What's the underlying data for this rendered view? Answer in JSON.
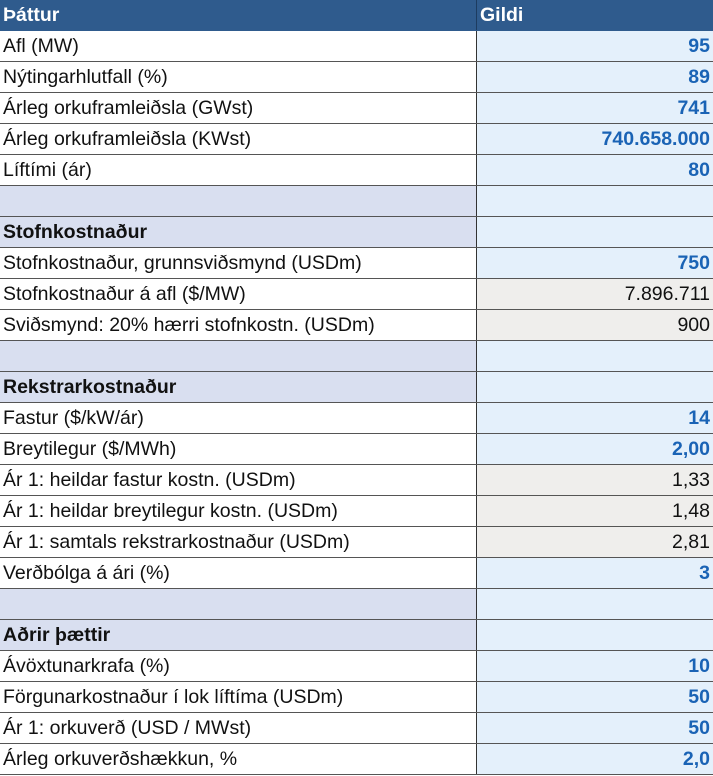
{
  "header": {
    "col1": "Þáttur",
    "col2": "Gildi"
  },
  "rows": [
    {
      "type": "input",
      "label": "Afl (MW)",
      "value": "95"
    },
    {
      "type": "input",
      "label": "Nýtingarhlutfall (%)",
      "value": "89"
    },
    {
      "type": "input",
      "label": "Árleg orkuframleiðsla (GWst)",
      "value": "741"
    },
    {
      "type": "input",
      "label": "Árleg orkuframleiðsla (KWst)",
      "value": "740.658.000"
    },
    {
      "type": "input",
      "label": "Líftími (ár)",
      "value": "80"
    },
    {
      "type": "blank",
      "label": "",
      "value": ""
    },
    {
      "type": "section",
      "label": "Stofnkostnaður",
      "value": ""
    },
    {
      "type": "input",
      "label": "Stofnkostnaður, grunnsviðsmynd (USDm)",
      "value": "750"
    },
    {
      "type": "calc",
      "label": "Stofnkostnaður á afl ($/MW)",
      "value": "7.896.711"
    },
    {
      "type": "calc",
      "label": "Sviðsmynd: 20% hærri stofnkostn. (USDm)",
      "value": "900"
    },
    {
      "type": "blank",
      "label": "",
      "value": ""
    },
    {
      "type": "section",
      "label": "Rekstrarkostnaður",
      "value": ""
    },
    {
      "type": "input",
      "label": "Fastur ($/kW/ár)",
      "value": "14"
    },
    {
      "type": "input",
      "label": "Breytilegur ($/MWh)",
      "value": "2,00"
    },
    {
      "type": "calc",
      "label": "Ár 1: heildar fastur kostn. (USDm)",
      "value": "1,33"
    },
    {
      "type": "calc",
      "label": "Ár 1: heildar breytilegur kostn. (USDm)",
      "value": "1,48"
    },
    {
      "type": "calc",
      "label": "Ár 1: samtals rekstrarkostnaður (USDm)",
      "value": "2,81"
    },
    {
      "type": "input",
      "label": "Verðbólga á ári (%)",
      "value": "3"
    },
    {
      "type": "blank",
      "label": "",
      "value": ""
    },
    {
      "type": "section",
      "label": "Aðrir þættir",
      "value": ""
    },
    {
      "type": "input",
      "label": "Ávöxtunarkrafa (%)",
      "value": "10"
    },
    {
      "type": "input",
      "label": "Förgunarkostnaður í lok líftíma (USDm)",
      "value": "50"
    },
    {
      "type": "input",
      "label": "Ár 1: orkuverð (USD / MWst)",
      "value": "50"
    },
    {
      "type": "input",
      "label": "Árleg orkuverðshækkun, %",
      "value": "2,0"
    }
  ],
  "colors": {
    "header": "#2f5b8d",
    "input_text": "#1a63b5",
    "input_bg": "#e4f0fb",
    "calc_bg": "#efeeec",
    "section_bg": "#d9dff0"
  }
}
